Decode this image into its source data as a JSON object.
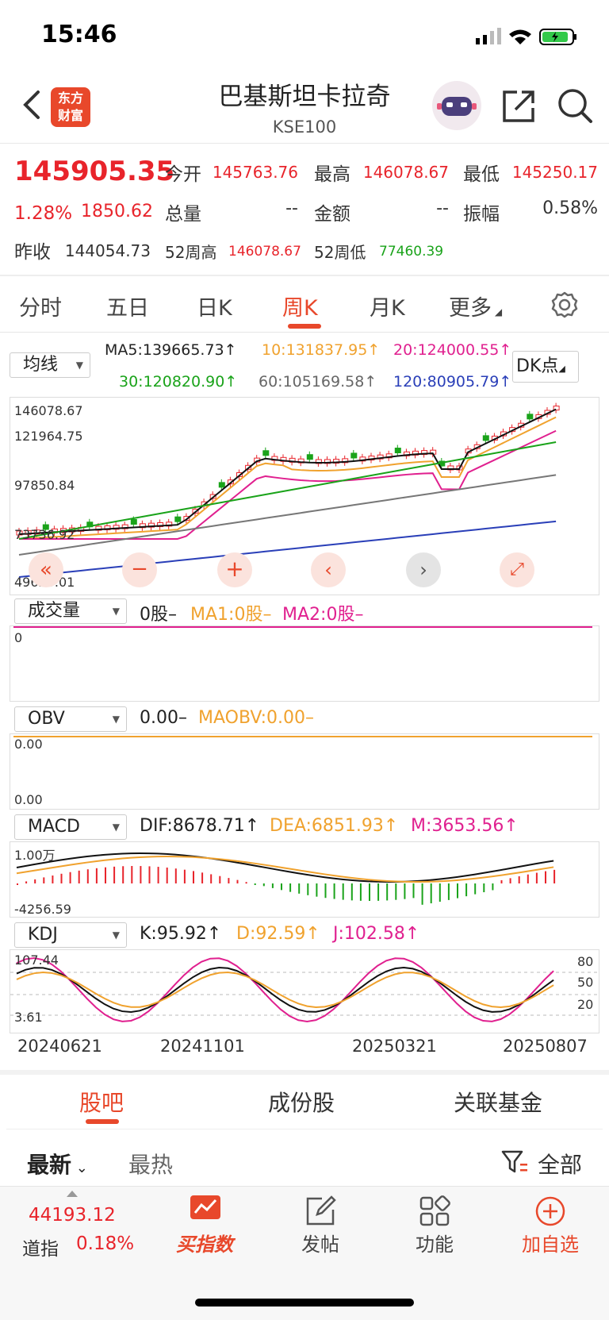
{
  "status": {
    "time": "15:46"
  },
  "header": {
    "title": "巴基斯坦卡拉奇",
    "subtitle": "KSE100",
    "logo_line1": "东方",
    "logo_line2": "财富"
  },
  "quote": {
    "price": "145905.35",
    "change_pct": "1.28%",
    "change": "1850.62",
    "open_label": "今开",
    "open": "145763.76",
    "high_label": "最高",
    "high": "146078.67",
    "low_label": "最低",
    "low": "145250.17",
    "volume_label": "总量",
    "volume": "--",
    "amount_label": "金额",
    "amount": "--",
    "amplitude_label": "振幅",
    "amplitude": "0.58%",
    "prev_close_label": "昨收",
    "prev_close": "144054.73",
    "wk52_high_label": "52周高",
    "wk52_high": "146078.67",
    "wk52_low_label": "52周低",
    "wk52_low": "77460.39"
  },
  "period_tabs": [
    "分时",
    "五日",
    "日K",
    "周K",
    "月K",
    "更多"
  ],
  "active_period": "周K",
  "main_chart": {
    "selector": "均线",
    "dk_button": "DK点",
    "ma5": "MA5:139665.73↑",
    "ma10": "10:131837.95↑",
    "ma20": "20:124000.55↑",
    "ma30": "30:120820.90↑",
    "ma60": "60:105169.58↑",
    "ma120": "120:80905.79↑",
    "y_labels": [
      "146078.67",
      "121964.75",
      "97850.84",
      "73736.92",
      "49623.01"
    ]
  },
  "volume_panel": {
    "selector": "成交量",
    "value": "0股–",
    "ma1": "MA1:0股–",
    "ma2": "MA2:0股–",
    "y_label": "0"
  },
  "obv_panel": {
    "selector": "OBV",
    "value": "0.00–",
    "maobv": "MAOBV:0.00–",
    "y_top": "0.00",
    "y_bottom": "0.00"
  },
  "macd_panel": {
    "selector": "MACD",
    "dif": "DIF:8678.71↑",
    "dea": "DEA:6851.93↑",
    "m": "M:3653.56↑",
    "y_top": "1.00万",
    "y_bottom": "-4256.59"
  },
  "kdj_panel": {
    "selector": "KDJ",
    "k": "K:95.92↑",
    "d": "D:92.59↑",
    "j": "J:102.58↑",
    "y_top": "107.44",
    "y_bottom": "3.61",
    "right_ticks": [
      "80",
      "50",
      "20"
    ]
  },
  "dates": [
    "20240621",
    "20241101",
    "20250321",
    "20250807"
  ],
  "bottom_tabs": [
    "股吧",
    "成份股",
    "关联基金"
  ],
  "filters": {
    "latest": "最新",
    "hot": "最热",
    "all": "全部"
  },
  "ticker": {
    "value": "44193.12",
    "name": "道指",
    "pct": "0.18%"
  },
  "nav": [
    "买指数",
    "发帖",
    "功能",
    "加自选"
  ],
  "colors": {
    "up": "#e8242b",
    "down": "#1aa31a",
    "accent": "#e8482b"
  }
}
